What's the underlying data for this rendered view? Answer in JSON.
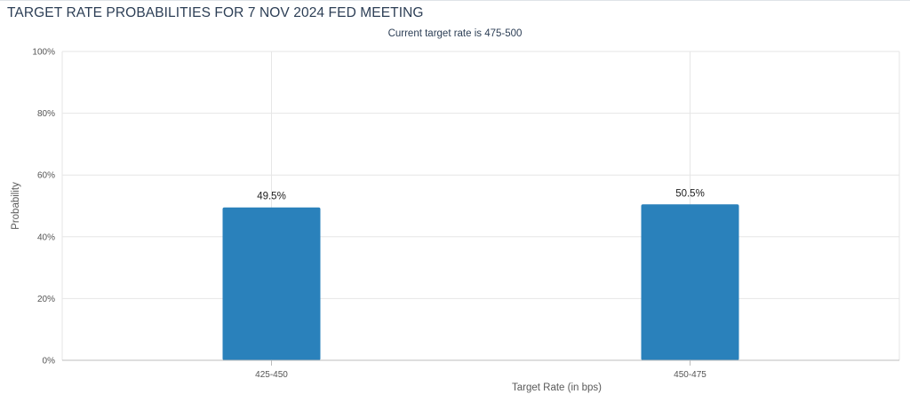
{
  "chart_data": {
    "type": "bar",
    "title": "TARGET RATE PROBABILITIES FOR 7 NOV 2024 FED MEETING",
    "subtitle": "Current target rate is 475-500",
    "xlabel": "Target Rate (in bps)",
    "ylabel": "Probability",
    "categories": [
      "425-450",
      "450-475"
    ],
    "values": [
      49.5,
      50.5
    ],
    "data_labels": [
      "49.5%",
      "50.5%"
    ],
    "ylim": [
      0,
      100
    ],
    "yticks": [
      0,
      20,
      40,
      60,
      80,
      100
    ],
    "ytick_labels": [
      "0%",
      "20%",
      "40%",
      "60%",
      "80%",
      "100%"
    ],
    "bar_color": "#2a81bb",
    "grid": true,
    "legend": "none"
  }
}
